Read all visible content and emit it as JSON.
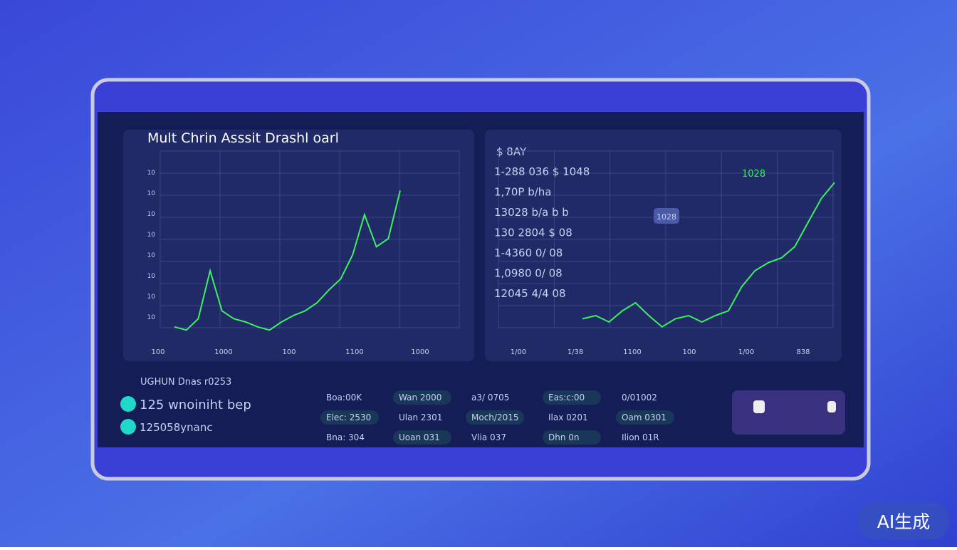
{
  "panels": [
    {
      "title": "Mult Chrin Asssit Drashl oarl",
      "ytick_labels": [
        "10",
        "10",
        "10",
        "10",
        "10",
        "10",
        "10",
        "10"
      ],
      "xtick_labels": [
        "100",
        "1000",
        "100",
        "1100",
        "1000"
      ],
      "series": [
        5,
        3,
        10,
        40,
        15,
        10,
        8,
        5,
        3,
        8,
        12,
        15,
        20,
        28,
        35,
        50,
        75,
        55,
        60,
        90
      ]
    },
    {
      "title": "$ 8AY",
      "row_labels": [
        "1-288 036 $ 1048",
        "1,70P b/ha",
        "13028 b/a b b",
        "130 2804 $ 08",
        "1-4360 0/ 08",
        "1,0980 0/ 08",
        "12045 4/4 08"
      ],
      "badge": "1028",
      "tag": "1028",
      "xtick_labels": [
        "1/00",
        "1/38",
        "1100",
        "100",
        "1/00",
        "838"
      ],
      "series": [
        10,
        12,
        8,
        15,
        20,
        12,
        5,
        10,
        12,
        8,
        12,
        15,
        30,
        40,
        45,
        48,
        55,
        70,
        85,
        95
      ]
    }
  ],
  "summary": {
    "heading": "UGHUN Dnas r0253",
    "items": [
      "125 wnoiniht bep",
      "125058ynanc"
    ]
  },
  "table": {
    "rows": [
      [
        "Boa:00K",
        "Wan 2000",
        "a3/ 0705",
        "Eas:c:00",
        "0/01002"
      ],
      [
        "Elec: 2530",
        "Ulan 2301",
        "Moch/2015",
        "Ilax 0201",
        "Oam 0301"
      ],
      [
        "Bna: 304",
        "Uoan 031",
        "Vlia 037",
        "Dhn 0n",
        "Ilion 01R"
      ]
    ]
  },
  "badge": "AI生成"
}
